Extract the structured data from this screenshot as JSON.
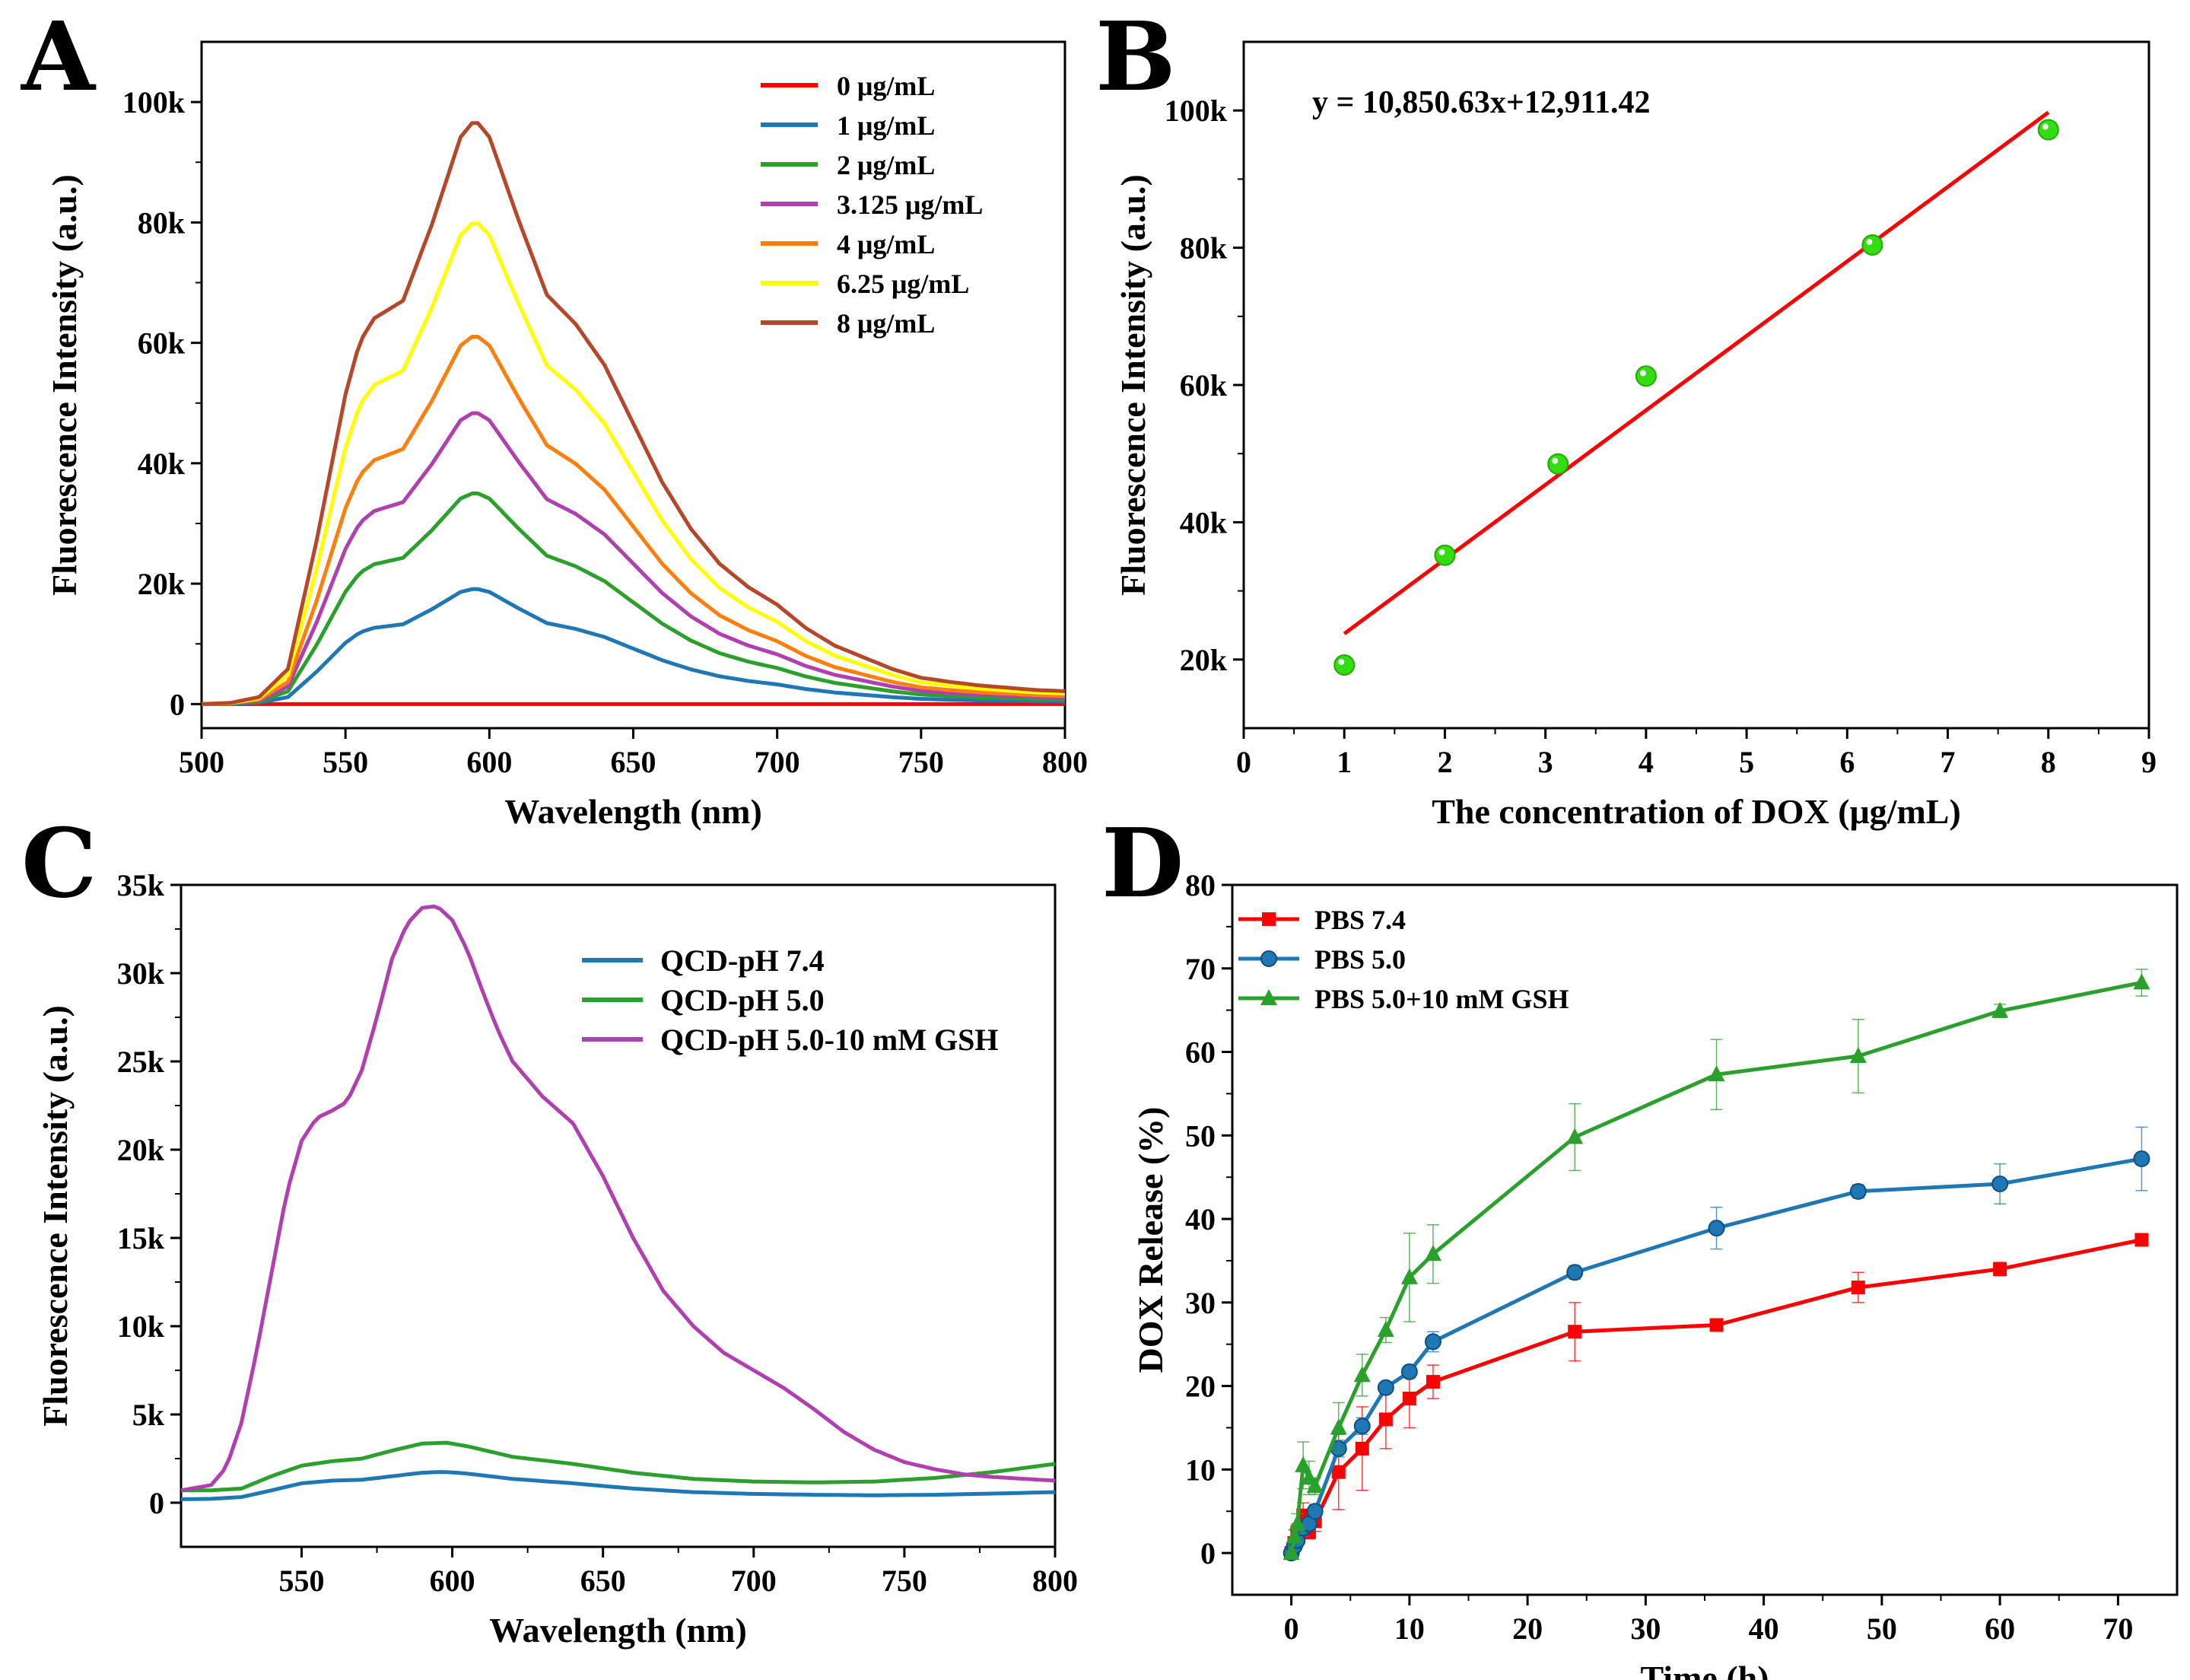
{
  "chart_data": [
    {
      "panel": "A",
      "type": "line",
      "xlabel": "Wavelength (nm)",
      "ylabel": "Fluorescence Intensity (a.u.)",
      "xlim": [
        500,
        800
      ],
      "ylim": [
        -4000,
        110000
      ],
      "xticks": [
        500,
        550,
        600,
        650,
        700,
        750,
        800
      ],
      "yticks": [
        0,
        20000,
        40000,
        60000,
        80000,
        100000
      ],
      "ytick_labels": [
        "0",
        "20k",
        "40k",
        "60k",
        "80k",
        "100k"
      ],
      "legend_position": "top-right",
      "series": [
        {
          "name": "0 μg/mL",
          "color": "#ff0000",
          "scale": 0
        },
        {
          "name": "1 μg/mL",
          "color": "#1f77b4",
          "scale": 19200
        },
        {
          "name": "2 μg/mL",
          "color": "#2ca02c",
          "scale": 35200
        },
        {
          "name": "3.125 μg/mL",
          "color": "#b040b0",
          "scale": 48600
        },
        {
          "name": "4 μg/mL",
          "color": "#ff7f0e",
          "scale": 61400
        },
        {
          "name": "6.25 μg/mL",
          "color": "#ffff00",
          "scale": 80300
        },
        {
          "name": "8 μg/mL",
          "color": "#b5472a",
          "scale": 97100
        }
      ],
      "spectrum_shape": {
        "x": [
          500,
          510,
          520,
          530,
          540,
          550,
          555,
          560,
          570,
          580,
          590,
          595,
          600,
          610,
          620,
          630,
          640,
          650,
          660,
          670,
          680,
          690,
          700,
          710,
          720,
          730,
          740,
          750,
          760,
          770,
          780,
          790,
          800
        ],
        "y": [
          0.0,
          0.002,
          0.012,
          0.06,
          0.28,
          0.53,
          0.62,
          0.66,
          0.69,
          0.82,
          0.97,
          1.0,
          0.97,
          0.83,
          0.7,
          0.65,
          0.58,
          0.48,
          0.38,
          0.3,
          0.24,
          0.2,
          0.17,
          0.13,
          0.1,
          0.08,
          0.06,
          0.045,
          0.038,
          0.032,
          0.028,
          0.024,
          0.022
        ]
      }
    },
    {
      "panel": "B",
      "type": "scatter",
      "xlabel": "The concentration of DOX (μg/mL)",
      "ylabel": "Fluorescence Intensity (a.u.)",
      "xlim": [
        0,
        9
      ],
      "ylim": [
        10000,
        110000
      ],
      "xticks": [
        0,
        1,
        2,
        3,
        4,
        5,
        6,
        7,
        8,
        9
      ],
      "yticks": [
        20000,
        40000,
        60000,
        80000,
        100000
      ],
      "ytick_labels": [
        "20k",
        "40k",
        "60k",
        "80k",
        "100k"
      ],
      "points": {
        "x": [
          1,
          2,
          3.125,
          4,
          6.25,
          8
        ],
        "y": [
          19200,
          35200,
          48500,
          61300,
          80400,
          97200
        ]
      },
      "point_color": "#33dd11",
      "fit": {
        "slope": 10850.63,
        "intercept": 12911.42,
        "x_range": [
          1,
          8
        ],
        "color": "#ff0000",
        "label": "y = 10,850.63x+12,911.42"
      }
    },
    {
      "panel": "C",
      "type": "line",
      "xlabel": "Wavelength (nm)",
      "ylabel": "Fluorescence Intensity (a.u.)",
      "xlim": [
        510,
        800
      ],
      "ylim": [
        -2500,
        35000
      ],
      "xticks": [
        550,
        600,
        650,
        700,
        750,
        800
      ],
      "yticks": [
        0,
        5000,
        10000,
        15000,
        20000,
        25000,
        30000,
        35000
      ],
      "ytick_labels": [
        "0",
        "5k",
        "10k",
        "15k",
        "20k",
        "25k",
        "30k",
        "35k"
      ],
      "legend_position": "top-right",
      "series": [
        {
          "name": "QCD-pH 7.4",
          "color": "#1f77b4",
          "x": [
            510,
            520,
            530,
            540,
            550,
            560,
            570,
            580,
            590,
            597,
            605,
            620,
            640,
            660,
            680,
            700,
            720,
            740,
            760,
            780,
            800
          ],
          "y": [
            200,
            220,
            320,
            700,
            1100,
            1250,
            1300,
            1500,
            1700,
            1750,
            1650,
            1350,
            1100,
            800,
            600,
            500,
            450,
            420,
            450,
            520,
            600
          ]
        },
        {
          "name": "QCD-pH 5.0",
          "color": "#2ca02c",
          "x": [
            510,
            520,
            530,
            540,
            550,
            560,
            570,
            580,
            590,
            598,
            605,
            620,
            640,
            660,
            680,
            700,
            720,
            740,
            760,
            780,
            800
          ],
          "y": [
            700,
            700,
            800,
            1500,
            2100,
            2350,
            2500,
            2950,
            3350,
            3400,
            3200,
            2600,
            2200,
            1700,
            1350,
            1200,
            1150,
            1200,
            1400,
            1750,
            2200
          ]
        },
        {
          "name": "QCD-pH 5.0-10 mM GSH",
          "color": "#b040b0",
          "x": [
            510,
            520,
            525,
            530,
            535,
            540,
            545,
            550,
            555,
            560,
            565,
            570,
            575,
            580,
            585,
            590,
            595,
            600,
            605,
            610,
            615,
            620,
            630,
            640,
            650,
            660,
            670,
            680,
            690,
            700,
            710,
            720,
            730,
            740,
            750,
            760,
            770,
            780,
            790,
            800
          ],
          "y": [
            700,
            1000,
            2000,
            4500,
            8500,
            13000,
            17500,
            20500,
            21800,
            22200,
            22700,
            24500,
            27500,
            30800,
            32800,
            33700,
            33800,
            33000,
            31300,
            29000,
            26800,
            25000,
            23000,
            21500,
            18500,
            15000,
            12000,
            10000,
            8500,
            7500,
            6500,
            5300,
            4000,
            3000,
            2300,
            1900,
            1600,
            1450,
            1350,
            1250
          ]
        }
      ]
    },
    {
      "panel": "D",
      "type": "line",
      "xlabel": "Time (h)",
      "ylabel": "DOX Release (%)",
      "xlim": [
        -5,
        75
      ],
      "ylim": [
        -5,
        80
      ],
      "xticks": [
        0,
        10,
        20,
        30,
        40,
        50,
        60,
        70
      ],
      "yticks": [
        0,
        10,
        20,
        30,
        40,
        50,
        60,
        70,
        80
      ],
      "legend_position": "top-left",
      "x": [
        0,
        0.25,
        0.5,
        1,
        1.5,
        2,
        4,
        6,
        8,
        10,
        12,
        24,
        36,
        48,
        60,
        72
      ],
      "series": [
        {
          "name": "PBS 7.4",
          "color": "#ff0000",
          "marker": "square",
          "y": [
            0,
            1.2,
            2.5,
            4.5,
            2.5,
            3.8,
            9.7,
            12.5,
            16,
            18.5,
            20.5,
            26.5,
            27.3,
            31.8,
            34,
            37.5
          ],
          "err": [
            0.3,
            0.6,
            1.0,
            1.5,
            0.8,
            1.2,
            4.5,
            5.0,
            3.5,
            3.5,
            2.0,
            3.5,
            0.7,
            1.8,
            0.8,
            0.7
          ]
        },
        {
          "name": "PBS 5.0",
          "color": "#1f77b4",
          "marker": "circle",
          "y": [
            0,
            0.8,
            1.5,
            3.0,
            3.5,
            5.0,
            12.5,
            15.2,
            19.8,
            21.7,
            25.3,
            33.6,
            38.9,
            43.3,
            44.2,
            47.2
          ],
          "err": [
            0.3,
            0.5,
            0.8,
            1.0,
            0.8,
            0.8,
            1.0,
            1.0,
            0.6,
            0.7,
            1.2,
            0.8,
            2.5,
            0.8,
            2.4,
            3.8
          ]
        },
        {
          "name": "PBS 5.0+10 mM GSH",
          "color": "#2ca02c",
          "marker": "triangle",
          "y": [
            0,
            2.0,
            3.5,
            10.5,
            9.0,
            8.0,
            15.0,
            21.3,
            26.7,
            33.0,
            35.8,
            49.8,
            57.3,
            59.5,
            64.9,
            68.3
          ],
          "err": [
            0.3,
            0.8,
            1.2,
            2.8,
            2.0,
            1.0,
            3.0,
            2.5,
            1.5,
            5.3,
            3.5,
            4.0,
            4.2,
            4.4,
            0.8,
            1.6
          ]
        }
      ]
    }
  ]
}
